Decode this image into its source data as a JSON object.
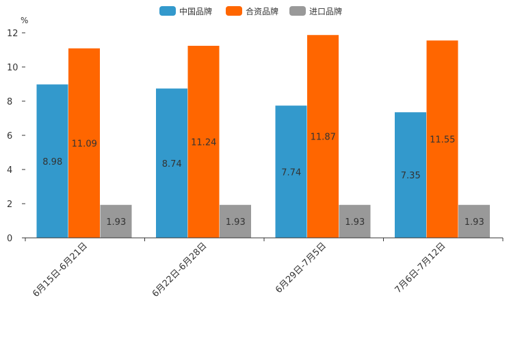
{
  "chart_data": {
    "type": "bar",
    "ylabel": "%",
    "ylim": [
      0,
      12
    ],
    "yticks": [
      0,
      2,
      4,
      6,
      8,
      10,
      12
    ],
    "categories": [
      "6月15日-6月21日",
      "6月22日-6月28日",
      "6月29日-7月5日",
      "7月6日-7月12日"
    ],
    "legend_position": "top",
    "series": [
      {
        "name": "中国品牌",
        "color": "#3399cc",
        "values": [
          8.98,
          8.74,
          7.74,
          7.35
        ],
        "labels": [
          "8.98",
          "8.74",
          "7.74",
          "7.35"
        ]
      },
      {
        "name": "合资品牌",
        "color": "#ff6600",
        "values": [
          11.09,
          11.24,
          11.87,
          11.55
        ],
        "labels": [
          "11.09",
          "11.24",
          "11.87",
          "11.55"
        ]
      },
      {
        "name": "进口品牌",
        "color": "#999999",
        "values": [
          1.93,
          1.93,
          1.93,
          1.93
        ],
        "labels": [
          "1.93",
          "1.93",
          "1.93",
          "1.93"
        ]
      }
    ]
  }
}
